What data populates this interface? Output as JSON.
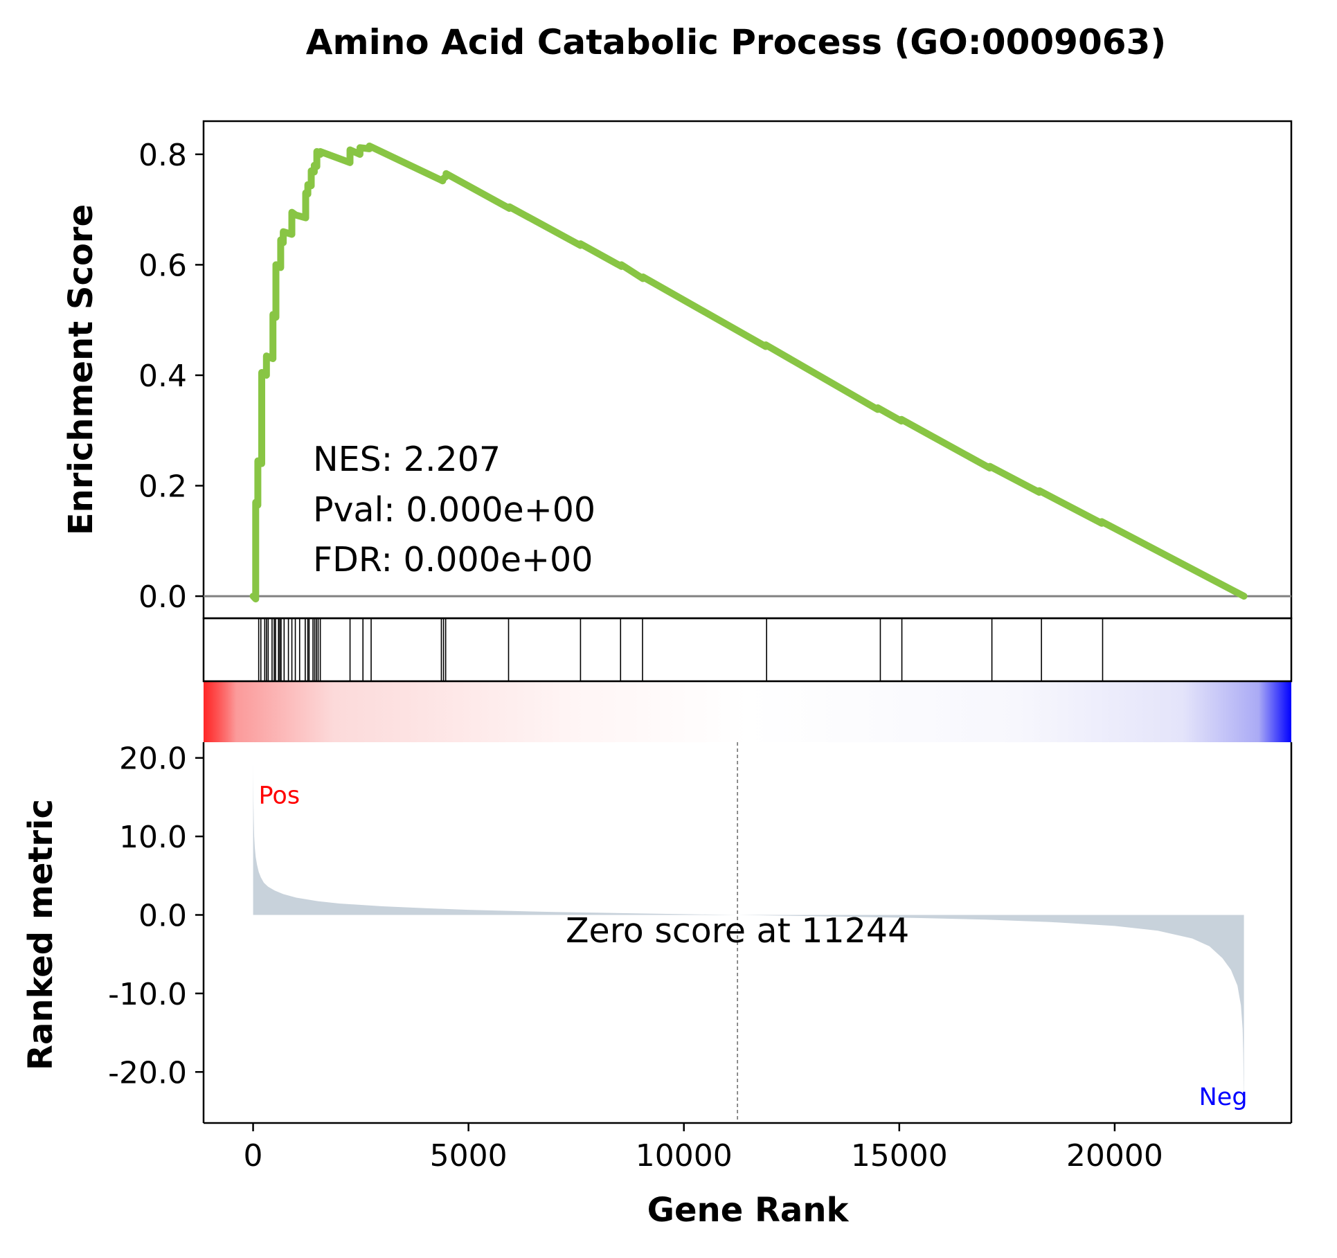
{
  "chart_data": {
    "type": "line",
    "title": "Amino Acid Catabolic Process (GO:0009063)",
    "xlabel": "Gene Rank",
    "xlim": [
      -1150,
      24100
    ],
    "xticks": [
      0,
      5000,
      10000,
      15000,
      20000
    ],
    "xtick_labels": [
      "0",
      "5000",
      "10000",
      "15000",
      "20000"
    ],
    "enrichment": {
      "ylabel": "Enrichment Score",
      "ylim": [
        -0.04,
        0.86
      ],
      "yticks": [
        0.0,
        0.2,
        0.4,
        0.6,
        0.8
      ],
      "ytick_labels": [
        "0.0",
        "0.2",
        "0.4",
        "0.6",
        "0.8"
      ],
      "line_color": "#88c544",
      "baseline_color": "#808080",
      "es_curve": {
        "x": [
          0,
          60,
          60,
          110,
          110,
          200,
          200,
          310,
          310,
          460,
          460,
          530,
          530,
          640,
          640,
          700,
          700,
          900,
          900,
          990,
          990,
          1220,
          1220,
          1270,
          1270,
          1350,
          1350,
          1420,
          1420,
          1480,
          1480,
          1560,
          1560,
          2250,
          2250,
          2480,
          2480,
          2700,
          2700,
          4400,
          4400,
          4480,
          4480,
          5950,
          5950,
          7600,
          7600,
          8550,
          8550,
          9050,
          9050,
          11900,
          11900,
          14500,
          14500,
          15050,
          15050,
          17100,
          17100,
          18250,
          18250,
          19700,
          19700,
          23000
        ],
        "y": [
          0.0,
          -0.005,
          0.17,
          0.165,
          0.245,
          0.24,
          0.405,
          0.4,
          0.435,
          0.43,
          0.51,
          0.505,
          0.6,
          0.595,
          0.645,
          0.64,
          0.66,
          0.655,
          0.695,
          0.69,
          0.69,
          0.685,
          0.73,
          0.728,
          0.745,
          0.743,
          0.77,
          0.768,
          0.78,
          0.778,
          0.805,
          0.8,
          0.805,
          0.785,
          0.808,
          0.8,
          0.812,
          0.81,
          0.815,
          0.752,
          0.755,
          0.76,
          0.765,
          0.702,
          0.705,
          0.635,
          0.638,
          0.597,
          0.6,
          0.575,
          0.578,
          0.452,
          0.455,
          0.338,
          0.341,
          0.317,
          0.32,
          0.232,
          0.235,
          0.188,
          0.191,
          0.132,
          0.135,
          0.0
        ]
      },
      "annotation": [
        "NES: 2.207",
        "Pval: 0.000e+00",
        "FDR: 0.000e+00"
      ]
    },
    "hits": {
      "positions": [
        130,
        180,
        270,
        310,
        350,
        440,
        490,
        520,
        590,
        620,
        650,
        720,
        820,
        900,
        980,
        1080,
        1210,
        1270,
        1300,
        1390,
        1430,
        1470,
        1510,
        1560,
        2250,
        2550,
        2740,
        4370,
        4420,
        4470,
        5930,
        7600,
        8530,
        9040,
        11920,
        14560,
        15060,
        17150,
        18300,
        19720
      ],
      "line_color": "#000000"
    },
    "gradient": {
      "colors": [
        "#ff0000",
        "#ffffff",
        "#0000ff"
      ]
    },
    "ranked": {
      "ylabel": "Ranked metric",
      "ylim": [
        -26.5,
        22
      ],
      "yticks": [
        20,
        10,
        0,
        -10,
        -20
      ],
      "ytick_labels": [
        "20.0",
        "10.0",
        "0.0",
        "-10.0",
        "-20.0"
      ],
      "fill_color": "#c8d2db",
      "profile": {
        "x": [
          0,
          3,
          8,
          15,
          25,
          40,
          60,
          90,
          130,
          180,
          250,
          350,
          500,
          700,
          1000,
          1500,
          2000,
          3000,
          4000,
          5000,
          6000,
          7000,
          8000,
          9000,
          10000,
          11244,
          12500,
          14000,
          15500,
          17000,
          18500,
          20000,
          21000,
          21800,
          22200,
          22500,
          22700,
          22850,
          22930,
          22970,
          22985,
          22995,
          23000
        ],
        "y": [
          20.0,
          17.5,
          14.5,
          12.0,
          10.0,
          8.6,
          7.4,
          6.4,
          5.5,
          4.8,
          4.1,
          3.6,
          3.1,
          2.65,
          2.2,
          1.75,
          1.45,
          1.1,
          0.85,
          0.65,
          0.5,
          0.38,
          0.28,
          0.18,
          0.1,
          0.0,
          -0.12,
          -0.25,
          -0.4,
          -0.6,
          -0.9,
          -1.4,
          -2.0,
          -3.0,
          -4.0,
          -5.5,
          -7.0,
          -9.0,
          -11.5,
          -14.5,
          -17.5,
          -21.5,
          -24.5
        ]
      },
      "zero_rank": 11244,
      "zero_label": "Zero score at 11244",
      "pos_label": "Pos",
      "neg_label": "Neg",
      "pos_color": "#ff0000",
      "neg_color": "#0000ff"
    }
  }
}
